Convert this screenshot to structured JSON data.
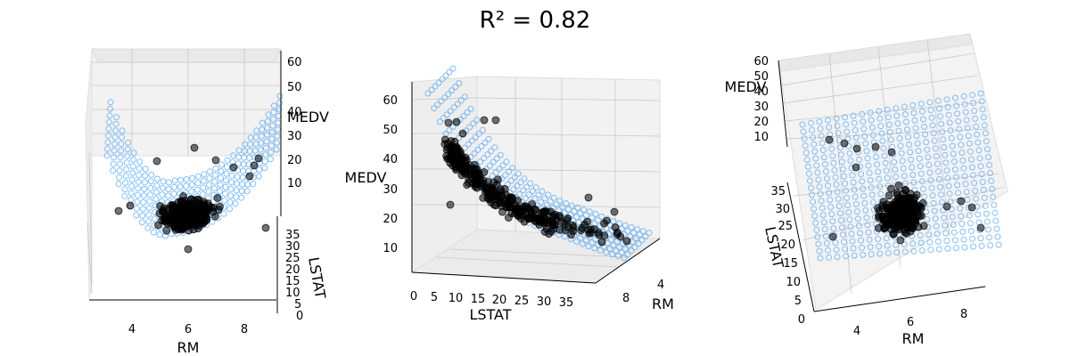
{
  "figure": {
    "title": "R² = 0.82"
  },
  "chart_data": [
    {
      "type": "scatter",
      "view": "left",
      "x_axis": {
        "label": "RM",
        "ticks": [
          "4",
          "6",
          "8"
        ]
      },
      "y_axis": {
        "label": "LSTAT",
        "ticks": [
          "0",
          "5",
          "10",
          "15",
          "20",
          "25",
          "30",
          "35"
        ]
      },
      "z_axis": {
        "label": "MEDV",
        "ticks": [
          "10",
          "20",
          "30",
          "40",
          "50",
          "60"
        ]
      },
      "series": [
        {
          "kind": "surface-markers",
          "color": "#5aa9f2"
        },
        {
          "kind": "points",
          "color": "#000000",
          "opacity": 0.55
        }
      ]
    },
    {
      "type": "scatter",
      "view": "middle",
      "x_axis": {
        "label": "LSTAT",
        "ticks": [
          "0",
          "5",
          "10",
          "15",
          "20",
          "25",
          "30",
          "35"
        ]
      },
      "y_axis": {
        "label": "RM",
        "ticks": [
          "8",
          "4"
        ]
      },
      "z_axis": {
        "label": "MEDV",
        "ticks": [
          "10",
          "20",
          "30",
          "40",
          "50",
          "60"
        ]
      },
      "series": [
        {
          "kind": "surface-markers",
          "color": "#5aa9f2"
        },
        {
          "kind": "points",
          "color": "#000000",
          "opacity": 0.55
        }
      ]
    },
    {
      "type": "scatter",
      "view": "right",
      "x_axis": {
        "label": "RM",
        "ticks": [
          "4",
          "6",
          "8"
        ]
      },
      "y_axis": {
        "label": "LSTAT",
        "ticks": [
          "0",
          "5",
          "10",
          "15",
          "20",
          "25",
          "30",
          "35"
        ]
      },
      "z_axis": {
        "label": "MEDV",
        "ticks": [
          "10",
          "20",
          "30",
          "40",
          "50",
          "60"
        ]
      },
      "series": [
        {
          "kind": "surface-markers",
          "color": "#5aa9f2"
        },
        {
          "kind": "points",
          "color": "#000000",
          "opacity": 0.55
        }
      ]
    }
  ]
}
